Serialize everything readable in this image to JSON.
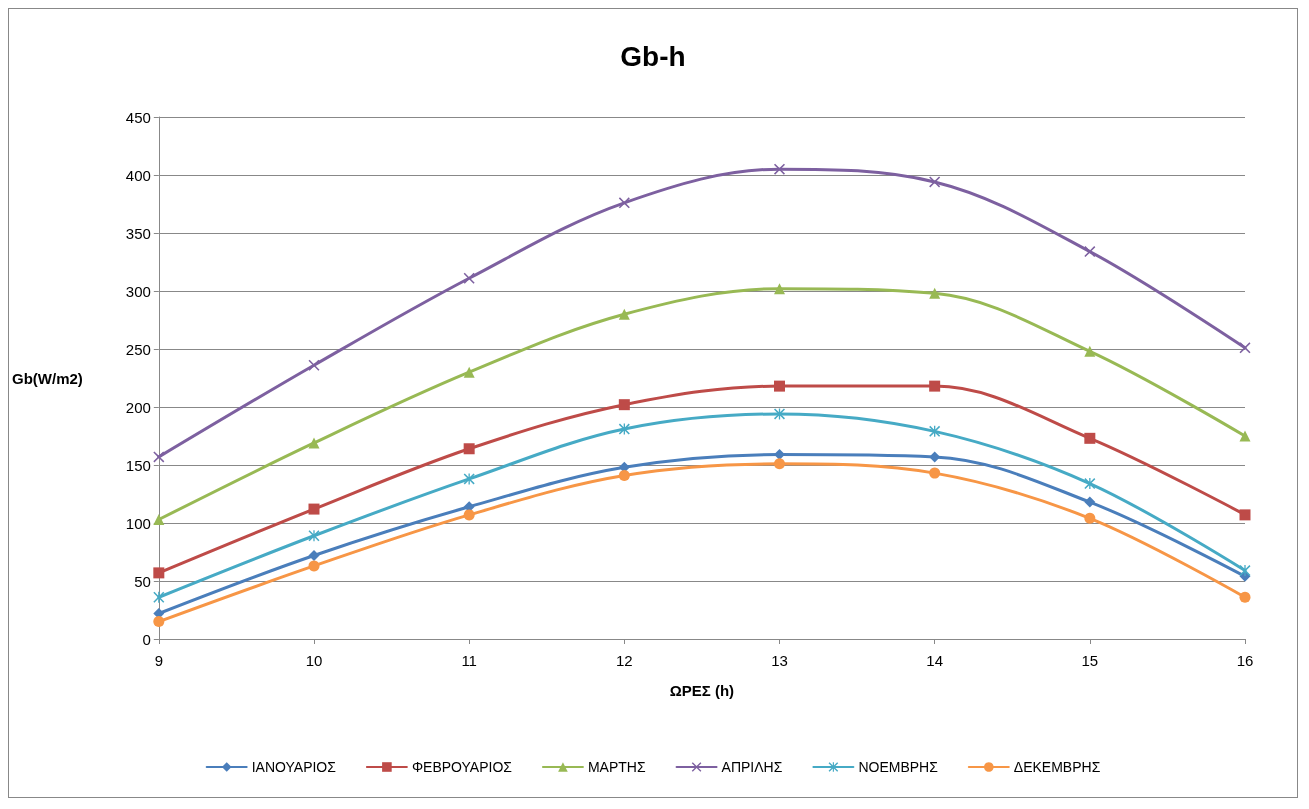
{
  "chart_data": {
    "type": "line",
    "title": "Gb-h",
    "xlabel": "ΩΡΕΣ (h)",
    "ylabel": "Gb(W/m2)",
    "x": [
      9,
      10,
      11,
      12,
      13,
      14,
      15,
      16
    ],
    "xlim": [
      9,
      16
    ],
    "xticks": [
      9,
      10,
      11,
      12,
      13,
      14,
      15,
      16
    ],
    "ylim": [
      0,
      450
    ],
    "yticks": [
      0,
      50,
      100,
      150,
      200,
      250,
      300,
      350,
      400,
      450
    ],
    "grid": "y",
    "legend": "bottom",
    "line_style": "solid",
    "series": [
      {
        "name": "ΙΑΝΟΥΑΡΙΟΣ",
        "color": "#4a7ebb",
        "marker": "diamond",
        "values": [
          22,
          72,
          114,
          148,
          159,
          157,
          118,
          54
        ]
      },
      {
        "name": "ΦΕΒΡΟΥΑΡΙΟΣ",
        "color": "#be4b48",
        "marker": "square",
        "values": [
          57,
          112,
          164,
          202,
          218,
          218,
          173,
          107
        ]
      },
      {
        "name": "ΜΑΡΤΗΣ",
        "color": "#98b954",
        "marker": "triangle",
        "values": [
          103,
          169,
          230,
          280,
          302,
          298,
          248,
          175
        ]
      },
      {
        "name": "ΑΠΡΙΛΗΣ",
        "color": "#7d60a0",
        "marker": "cross",
        "values": [
          157,
          236,
          311,
          376,
          405,
          394,
          334,
          251
        ]
      },
      {
        "name": "ΝΟΕΜΒΡΗΣ",
        "color": "#46aac5",
        "marker": "star",
        "values": [
          36,
          89,
          138,
          181,
          194,
          179,
          134,
          59
        ]
      },
      {
        "name": "ΔΕΚΕΜΒΡΗΣ",
        "color": "#f79646",
        "marker": "circle",
        "values": [
          15,
          63,
          107,
          141,
          151,
          143,
          104,
          36
        ]
      }
    ]
  }
}
